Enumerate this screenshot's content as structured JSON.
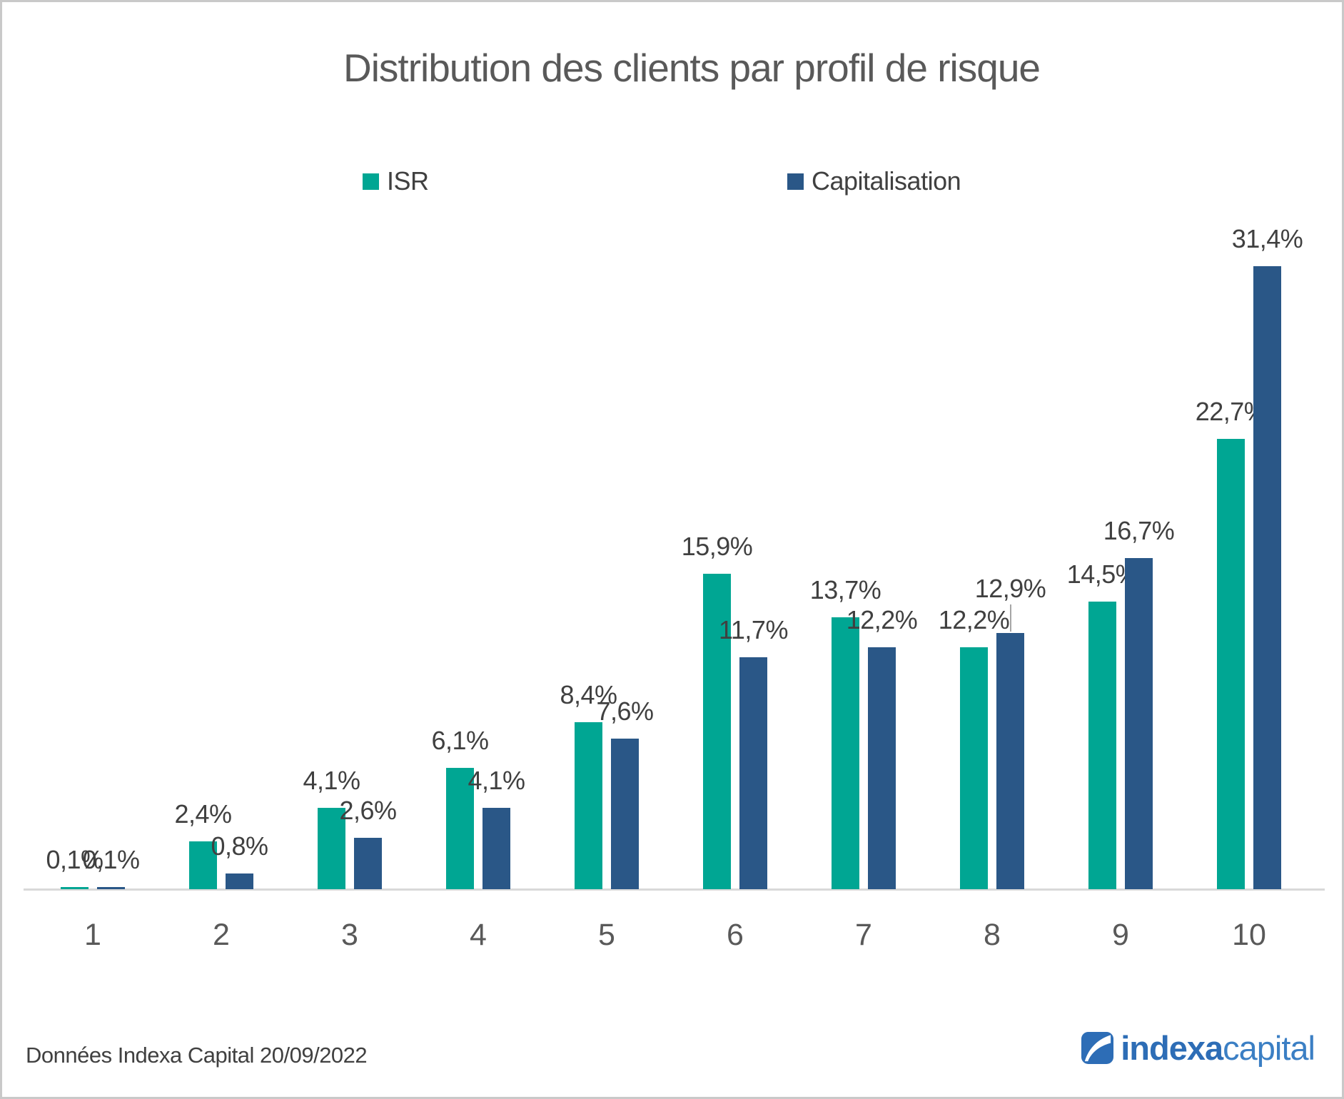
{
  "title": "Distribution des clients par profil de risque",
  "legend": {
    "isr": {
      "label": "ISR",
      "color": "#00A693"
    },
    "capitalisation": {
      "label": "Capitalisation",
      "color": "#2A5787"
    }
  },
  "chart_data": {
    "type": "bar",
    "title": "Distribution des clients par profil de risque",
    "categories": [
      "1",
      "2",
      "3",
      "4",
      "5",
      "6",
      "7",
      "8",
      "9",
      "10"
    ],
    "series": [
      {
        "name": "ISR",
        "color": "#00A693",
        "values": [
          0.1,
          2.4,
          4.1,
          6.1,
          8.4,
          15.9,
          13.7,
          12.2,
          14.5,
          22.7
        ],
        "labels": [
          "0,1%",
          "2,4%",
          "4,1%",
          "6,1%",
          "8,4%",
          "15,9%",
          "13,7%",
          "12,2%",
          "14,5%",
          "22,7%"
        ]
      },
      {
        "name": "Capitalisation",
        "color": "#2A5787",
        "values": [
          0.1,
          0.8,
          2.6,
          4.1,
          7.6,
          11.7,
          12.2,
          12.9,
          16.7,
          31.4
        ],
        "labels": [
          "0,1%",
          "0,8%",
          "2,6%",
          "4,1%",
          "7,6%",
          "11,7%",
          "12,2%",
          "12,9%",
          "16,7%",
          "31,4%"
        ]
      }
    ],
    "ylim": [
      0,
      35
    ],
    "xlabel": "",
    "ylabel": "",
    "grid": false,
    "legend_position": "top",
    "value_format": "percent-comma",
    "leader_line": {
      "series": 1,
      "category_index": 7
    }
  },
  "footer": {
    "note": "Données Indexa Capital 20/09/2022"
  },
  "logo": {
    "bold": "indexa",
    "light": "capital"
  }
}
